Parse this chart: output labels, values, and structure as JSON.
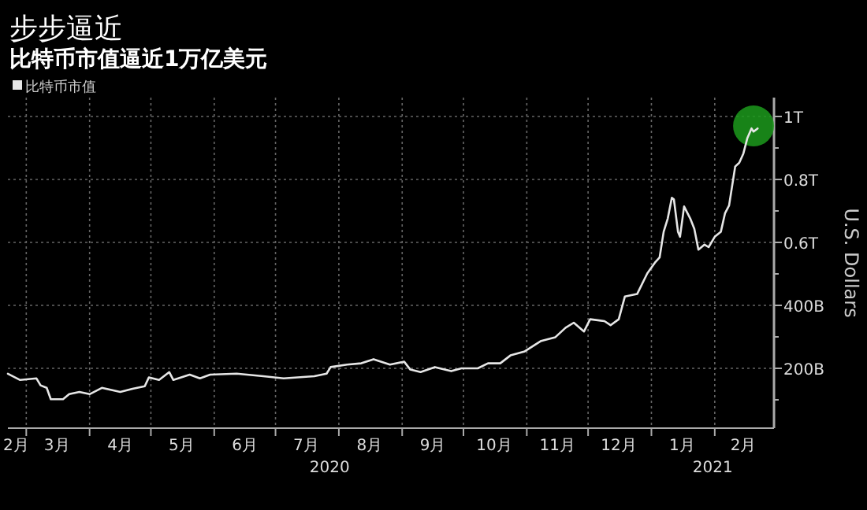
{
  "chart_data": {
    "type": "line",
    "title": "步步逼近",
    "subtitle": "比特币市值逼近1万亿美元",
    "ylabel": "U.S. Dollars",
    "legend": "top left",
    "grid": true,
    "xlim": [
      "2020-02-21",
      "2021-03-02"
    ],
    "xticks": [
      {
        "value": "2020-03-01",
        "label": null
      },
      {
        "value": "2020-04-01",
        "label": null
      },
      {
        "value": "2020-05-01",
        "label": null
      },
      {
        "value": "2020-06-01",
        "label": null
      },
      {
        "value": "2020-07-01",
        "label": null
      },
      {
        "value": "2020-08-01",
        "label": null
      },
      {
        "value": "2020-09-01",
        "label": null
      },
      {
        "value": "2020-10-01",
        "label": null
      },
      {
        "value": "2020-11-01",
        "label": null
      },
      {
        "value": "2020-12-01",
        "label": null
      },
      {
        "value": "2021-01-01",
        "label": null
      },
      {
        "value": "2021-02-01",
        "label": null
      },
      {
        "value": "2020-02-25",
        "label": "2月"
      },
      {
        "value": "2020-03-16",
        "label": "3月"
      },
      {
        "value": "2020-04-16",
        "label": "4月"
      },
      {
        "value": "2020-05-16",
        "label": "5月"
      },
      {
        "value": "2020-06-16",
        "label": "6月"
      },
      {
        "value": "2020-07-16",
        "label": "7月"
      },
      {
        "value": "2020-08-16",
        "label": "8月"
      },
      {
        "value": "2020-09-16",
        "label": "9月"
      },
      {
        "value": "2020-10-16",
        "label": "10月"
      },
      {
        "value": "2020-11-16",
        "label": "11月"
      },
      {
        "value": "2020-12-16",
        "label": "12月"
      },
      {
        "value": "2021-01-16",
        "label": "1月"
      },
      {
        "value": "2021-02-15",
        "label": "2月"
      }
    ],
    "ylim": [
      10000000000.0,
      1060000000000.0
    ],
    "yticks": [
      {
        "value": 100000000000.0,
        "label": null
      },
      {
        "value": 200000000000.0,
        "label": "200B"
      },
      {
        "value": 300000000000.0,
        "label": null
      },
      {
        "value": 400000000000.0,
        "label": "400B"
      },
      {
        "value": 500000000000.0,
        "label": null
      },
      {
        "value": 600000000000.0,
        "label": "0.6T"
      },
      {
        "value": 700000000000.0,
        "label": null
      },
      {
        "value": 800000000000.0,
        "label": "0.8T"
      },
      {
        "value": 900000000000.0,
        "label": null
      },
      {
        "value": 1000000000000.0,
        "label": "1T"
      }
    ],
    "annotations": [
      "2020",
      "2021"
    ],
    "series": [
      {
        "name": "比特币市值",
        "color": "#e6e6e6",
        "x": [
          "2020-02-21",
          "2020-02-27",
          "2020-03-06",
          "2020-03-08",
          "2020-03-11",
          "2020-03-13",
          "2020-03-19",
          "2020-03-22",
          "2020-03-27",
          "2020-04-01",
          "2020-04-07",
          "2020-04-16",
          "2020-04-22",
          "2020-04-28",
          "2020-04-30",
          "2020-05-05",
          "2020-05-10",
          "2020-05-12",
          "2020-05-20",
          "2020-05-25",
          "2020-05-30",
          "2020-06-12",
          "2020-06-25",
          "2020-07-05",
          "2020-07-20",
          "2020-07-26",
          "2020-07-28",
          "2020-08-05",
          "2020-08-12",
          "2020-08-18",
          "2020-08-26",
          "2020-09-02",
          "2020-09-05",
          "2020-09-10",
          "2020-09-17",
          "2020-09-25",
          "2020-09-30",
          "2020-10-08",
          "2020-10-13",
          "2020-10-19",
          "2020-10-24",
          "2020-10-31",
          "2020-11-08",
          "2020-11-15",
          "2020-11-20",
          "2020-11-24",
          "2020-11-29",
          "2020-12-02",
          "2020-12-09",
          "2020-12-12",
          "2020-12-16",
          "2020-12-19",
          "2020-12-25",
          "2020-12-30",
          "2021-01-03",
          "2021-01-05",
          "2021-01-07",
          "2021-01-09",
          "2021-01-11",
          "2021-01-12",
          "2021-01-14",
          "2021-01-15",
          "2021-01-17",
          "2021-01-20",
          "2021-01-22",
          "2021-01-24",
          "2021-01-27",
          "2021-01-29",
          "2021-02-01",
          "2021-02-04",
          "2021-02-06",
          "2021-02-08",
          "2021-02-11",
          "2021-02-13",
          "2021-02-15",
          "2021-02-17",
          "2021-02-19",
          "2021-02-20",
          "2021-02-22"
        ],
        "values": [
          183000000000.0,
          163000000000.0,
          168000000000.0,
          146000000000.0,
          138000000000.0,
          102000000000.0,
          102000000000.0,
          118000000000.0,
          125000000000.0,
          118000000000.0,
          138000000000.0,
          125000000000.0,
          135000000000.0,
          143000000000.0,
          171000000000.0,
          163000000000.0,
          188000000000.0,
          163000000000.0,
          180000000000.0,
          168000000000.0,
          180000000000.0,
          183000000000.0,
          175000000000.0,
          168000000000.0,
          175000000000.0,
          183000000000.0,
          204000000000.0,
          212000000000.0,
          216000000000.0,
          229000000000.0,
          212000000000.0,
          221000000000.0,
          196000000000.0,
          188000000000.0,
          204000000000.0,
          191000000000.0,
          200000000000.0,
          200000000000.0,
          216000000000.0,
          216000000000.0,
          241000000000.0,
          254000000000.0,
          287000000000.0,
          299000000000.0,
          329000000000.0,
          345000000000.0,
          317000000000.0,
          356000000000.0,
          350000000000.0,
          337000000000.0,
          356000000000.0,
          428000000000.0,
          436000000000.0,
          502000000000.0,
          538000000000.0,
          552000000000.0,
          634000000000.0,
          676000000000.0,
          742000000000.0,
          737000000000.0,
          634000000000.0,
          618000000000.0,
          714000000000.0,
          676000000000.0,
          643000000000.0,
          577000000000.0,
          593000000000.0,
          585000000000.0,
          618000000000.0,
          634000000000.0,
          692000000000.0,
          717000000000.0,
          841000000000.0,
          853000000000.0,
          882000000000.0,
          932000000000.0,
          962000000000.0,
          952000000000.0,
          962000000000.0
        ]
      },
      {
        "type": "scatter",
        "marker": "circle",
        "color": "#1c9a1c",
        "x": [
          "2021-02-20"
        ],
        "values": [
          970000000000.0
        ]
      }
    ]
  }
}
